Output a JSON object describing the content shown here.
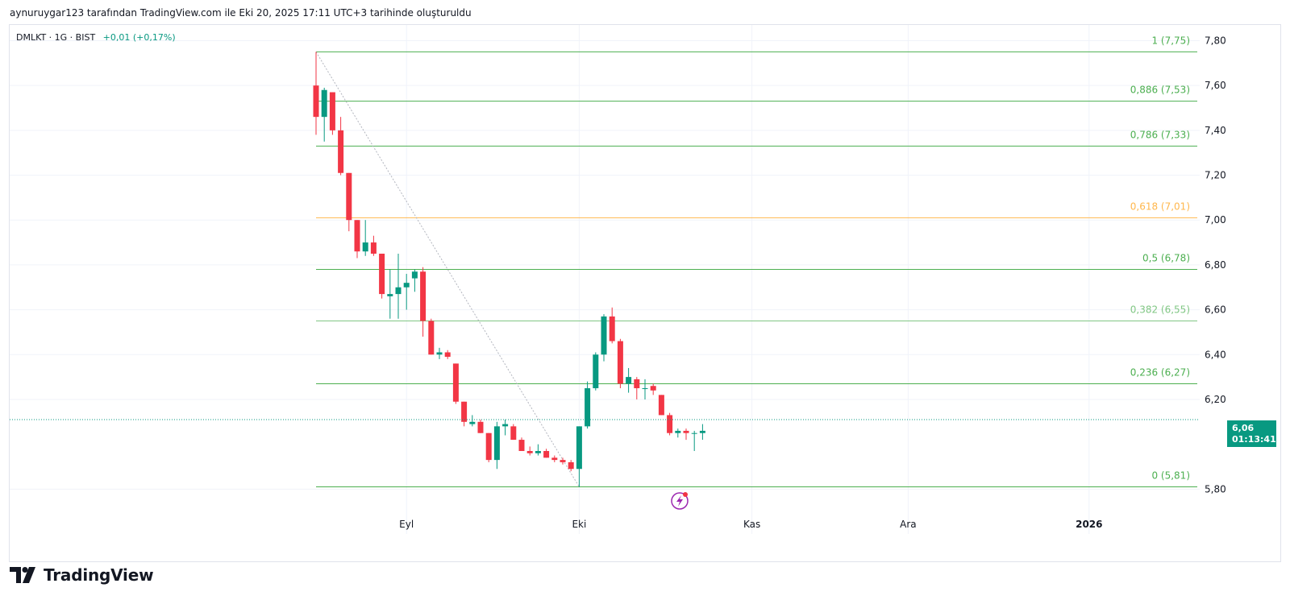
{
  "header": {
    "publish_note": "aynuruygar123 tarafından TradingView.com ile Eki 20, 2025 17:11 UTC+3 tarihinde oluşturuldu"
  },
  "symbol": {
    "name": "DMLKT · 1G · BIST",
    "change": "+0,01 (+0,17%)"
  },
  "last_price": {
    "value": "6,06",
    "countdown": "01:13:41"
  },
  "brand": {
    "logo_text": "TradingView"
  },
  "colors": {
    "up": "#089981",
    "down": "#f23645",
    "fib_line": "#4caf50",
    "fib_0618": "#ffb74d",
    "grid": "#f0f3fa"
  },
  "chart_data": {
    "type": "candlestick",
    "ylim": [
      5.6,
      7.87
    ],
    "y_ticks": [
      {
        "value": 7.8,
        "label": "7,80"
      },
      {
        "value": 7.6,
        "label": "7,60"
      },
      {
        "value": 7.4,
        "label": "7,40"
      },
      {
        "value": 7.2,
        "label": "7,20"
      },
      {
        "value": 7.0,
        "label": "7,00"
      },
      {
        "value": 6.8,
        "label": "6,80"
      },
      {
        "value": 6.6,
        "label": "6,60"
      },
      {
        "value": 6.4,
        "label": "6,40"
      },
      {
        "value": 6.2,
        "label": "6,20"
      },
      {
        "value": 5.8,
        "label": "5,80"
      }
    ],
    "x_ticks": [
      {
        "index": 11,
        "label": "Eyl"
      },
      {
        "index": 32,
        "label": "Eki"
      },
      {
        "index": 53,
        "label": "Kas"
      },
      {
        "index": 72,
        "label": "Ara"
      },
      {
        "index": 94,
        "label": "2026"
      }
    ],
    "candles": [
      {
        "o": 7.6,
        "h": 7.75,
        "l": 7.38,
        "c": 7.46
      },
      {
        "o": 7.46,
        "h": 7.59,
        "l": 7.35,
        "c": 7.58
      },
      {
        "o": 7.57,
        "h": 7.57,
        "l": 7.38,
        "c": 7.4
      },
      {
        "o": 7.4,
        "h": 7.46,
        "l": 7.2,
        "c": 7.21
      },
      {
        "o": 7.21,
        "h": 7.21,
        "l": 6.95,
        "c": 7.0
      },
      {
        "o": 7.0,
        "h": 7.0,
        "l": 6.83,
        "c": 6.86
      },
      {
        "o": 6.86,
        "h": 7.0,
        "l": 6.84,
        "c": 6.9
      },
      {
        "o": 6.9,
        "h": 6.93,
        "l": 6.84,
        "c": 6.85
      },
      {
        "o": 6.85,
        "h": 6.85,
        "l": 6.65,
        "c": 6.67
      },
      {
        "o": 6.66,
        "h": 6.78,
        "l": 6.56,
        "c": 6.67
      },
      {
        "o": 6.67,
        "h": 6.85,
        "l": 6.56,
        "c": 6.7
      },
      {
        "o": 6.7,
        "h": 6.76,
        "l": 6.6,
        "c": 6.72
      },
      {
        "o": 6.74,
        "h": 6.78,
        "l": 6.68,
        "c": 6.77
      },
      {
        "o": 6.77,
        "h": 6.79,
        "l": 6.48,
        "c": 6.55
      },
      {
        "o": 6.55,
        "h": 6.56,
        "l": 6.4,
        "c": 6.4
      },
      {
        "o": 6.4,
        "h": 6.43,
        "l": 6.38,
        "c": 6.41
      },
      {
        "o": 6.41,
        "h": 6.42,
        "l": 6.38,
        "c": 6.39
      },
      {
        "o": 6.36,
        "h": 6.36,
        "l": 6.18,
        "c": 6.19
      },
      {
        "o": 6.19,
        "h": 6.19,
        "l": 6.08,
        "c": 6.1
      },
      {
        "o": 6.09,
        "h": 6.13,
        "l": 6.08,
        "c": 6.1
      },
      {
        "o": 6.1,
        "h": 6.11,
        "l": 6.05,
        "c": 6.05
      },
      {
        "o": 6.05,
        "h": 6.05,
        "l": 5.92,
        "c": 5.93
      },
      {
        "o": 5.93,
        "h": 6.1,
        "l": 5.89,
        "c": 6.08
      },
      {
        "o": 6.08,
        "h": 6.11,
        "l": 6.04,
        "c": 6.09
      },
      {
        "o": 6.08,
        "h": 6.09,
        "l": 6.02,
        "c": 6.02
      },
      {
        "o": 6.02,
        "h": 6.03,
        "l": 5.98,
        "c": 5.97
      },
      {
        "o": 5.97,
        "h": 5.99,
        "l": 5.95,
        "c": 5.96
      },
      {
        "o": 5.96,
        "h": 6.0,
        "l": 5.95,
        "c": 5.97
      },
      {
        "o": 5.97,
        "h": 5.98,
        "l": 5.94,
        "c": 5.94
      },
      {
        "o": 5.94,
        "h": 5.95,
        "l": 5.92,
        "c": 5.93
      },
      {
        "o": 5.93,
        "h": 5.94,
        "l": 5.91,
        "c": 5.92
      },
      {
        "o": 5.92,
        "h": 5.93,
        "l": 5.88,
        "c": 5.89
      },
      {
        "o": 5.89,
        "h": 6.08,
        "l": 5.81,
        "c": 6.08
      },
      {
        "o": 6.08,
        "h": 6.28,
        "l": 6.07,
        "c": 6.25
      },
      {
        "o": 6.25,
        "h": 6.41,
        "l": 6.24,
        "c": 6.4
      },
      {
        "o": 6.4,
        "h": 6.58,
        "l": 6.37,
        "c": 6.57
      },
      {
        "o": 6.57,
        "h": 6.61,
        "l": 6.45,
        "c": 6.46
      },
      {
        "o": 6.46,
        "h": 6.47,
        "l": 6.25,
        "c": 6.27
      },
      {
        "o": 6.27,
        "h": 6.34,
        "l": 6.23,
        "c": 6.3
      },
      {
        "o": 6.29,
        "h": 6.3,
        "l": 6.2,
        "c": 6.25
      },
      {
        "o": 6.25,
        "h": 6.29,
        "l": 6.2,
        "c": 6.25
      },
      {
        "o": 6.26,
        "h": 6.27,
        "l": 6.22,
        "c": 6.24
      },
      {
        "o": 6.22,
        "h": 6.22,
        "l": 6.13,
        "c": 6.13
      },
      {
        "o": 6.13,
        "h": 6.14,
        "l": 6.04,
        "c": 6.05
      },
      {
        "o": 6.05,
        "h": 6.07,
        "l": 6.03,
        "c": 6.06
      },
      {
        "o": 6.06,
        "h": 6.07,
        "l": 6.02,
        "c": 6.05
      },
      {
        "o": 6.05,
        "h": 6.06,
        "l": 5.97,
        "c": 6.05
      },
      {
        "o": 6.05,
        "h": 6.09,
        "l": 6.02,
        "c": 6.06
      }
    ],
    "fib_levels": [
      {
        "ratio": 1,
        "price": 7.75,
        "label": "1 (7,75)",
        "color": "#4caf50"
      },
      {
        "ratio": 0.886,
        "price": 7.53,
        "label": "0,886 (7,53)",
        "color": "#4caf50"
      },
      {
        "ratio": 0.786,
        "price": 7.33,
        "label": "0,786 (7,33)",
        "color": "#4caf50"
      },
      {
        "ratio": 0.618,
        "price": 7.01,
        "label": "0,618 (7,01)",
        "color": "#ffb74d"
      },
      {
        "ratio": 0.5,
        "price": 6.78,
        "label": "0,5 (6,78)",
        "color": "#4caf50"
      },
      {
        "ratio": 0.382,
        "price": 6.55,
        "label": "0,382 (6,55)",
        "color": "#81c784"
      },
      {
        "ratio": 0.236,
        "price": 6.27,
        "label": "0,236 (6,27)",
        "color": "#4caf50"
      },
      {
        "ratio": 0,
        "price": 5.81,
        "label": "0 (5,81)",
        "color": "#4caf50"
      }
    ],
    "trend_line": {
      "from": {
        "index": 0,
        "price": 7.75
      },
      "to": {
        "index": 32,
        "price": 5.81
      }
    }
  }
}
